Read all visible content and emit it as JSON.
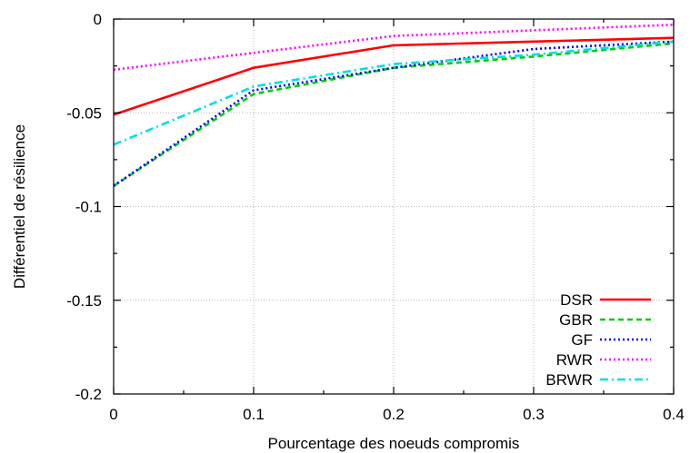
{
  "chart_data": {
    "type": "line",
    "title": "",
    "xlabel": "Pourcentage des noeuds compromis",
    "ylabel": "Différentiel de résilience",
    "xlim": [
      0,
      0.4
    ],
    "ylim": [
      -0.2,
      0
    ],
    "x": [
      0,
      0.1,
      0.2,
      0.3,
      0.4
    ],
    "x_ticks": [
      "0",
      "0.1",
      "0.2",
      "0.3",
      "0.4"
    ],
    "y_ticks": [
      "0",
      "-0.05",
      "-0.1",
      "-0.15",
      "-0.2"
    ],
    "x_tick_values": [
      0,
      0.1,
      0.2,
      0.3,
      0.4
    ],
    "y_tick_values": [
      0,
      -0.05,
      -0.1,
      -0.15,
      -0.2
    ],
    "grid": true,
    "legend_position": "bottom-right",
    "series": [
      {
        "name": "DSR",
        "color": "#ff0000",
        "style": "solid",
        "values": [
          -0.051,
          -0.026,
          -0.014,
          -0.012,
          -0.01
        ]
      },
      {
        "name": "GBR",
        "color": "#00cc00",
        "style": "dashed",
        "values": [
          -0.089,
          -0.04,
          -0.026,
          -0.02,
          -0.013
        ]
      },
      {
        "name": "GF",
        "color": "#0000ff",
        "style": "dotted",
        "values": [
          -0.089,
          -0.038,
          -0.026,
          -0.016,
          -0.012
        ]
      },
      {
        "name": "RWR",
        "color": "#ff00ff",
        "style": "dotted",
        "values": [
          -0.027,
          -0.018,
          -0.009,
          -0.006,
          -0.003
        ]
      },
      {
        "name": "BRWR",
        "color": "#00e0e0",
        "style": "dashdot",
        "values": [
          -0.067,
          -0.036,
          -0.024,
          -0.019,
          -0.012
        ]
      }
    ]
  }
}
